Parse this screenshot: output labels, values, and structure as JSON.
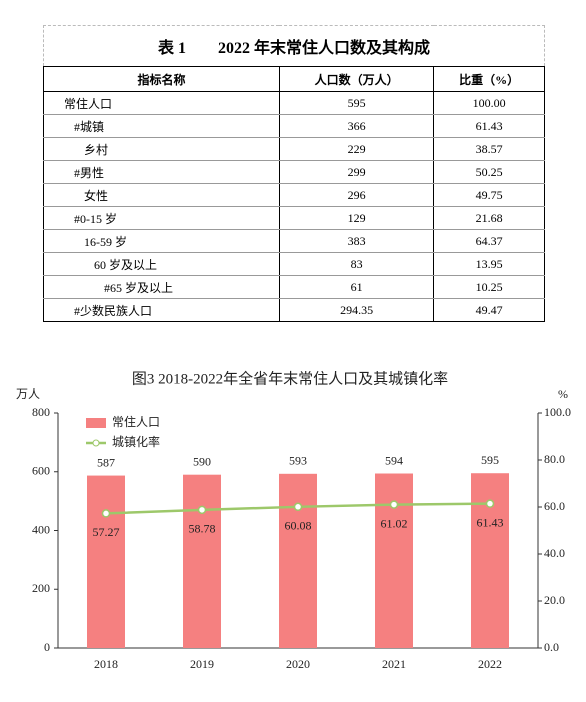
{
  "table": {
    "title": "表 1　　2022 年末常住人口数及其构成",
    "header": [
      "指标名称",
      "人口数（万人）",
      "比重（%）"
    ],
    "rows": [
      [
        "常住人口",
        "595",
        "100.00"
      ],
      [
        "#城镇",
        "366",
        "61.43"
      ],
      [
        "乡村",
        "229",
        "38.57"
      ],
      [
        "#男性",
        "299",
        "50.25"
      ],
      [
        "女性",
        "296",
        "49.75"
      ],
      [
        "#0-15 岁",
        "129",
        "21.68"
      ],
      [
        "16-59 岁",
        "383",
        "64.37"
      ],
      [
        "60 岁及以上",
        "83",
        "13.95"
      ],
      [
        "#65 岁及以上",
        "61",
        "10.25"
      ],
      [
        "#少数民族人口",
        "294.35",
        "49.47"
      ]
    ]
  },
  "chart_data": {
    "type": "bar",
    "title": "图3  2018-2022年全省年末常住人口及其城镇化率",
    "ylabel": "万人",
    "y2label": "%",
    "categories": [
      "2018",
      "2019",
      "2020",
      "2021",
      "2022"
    ],
    "series": [
      {
        "name": "常住人口",
        "type": "bar",
        "color": "#f58080",
        "values": [
          587,
          590,
          593,
          594,
          595
        ]
      },
      {
        "name": "城镇化率",
        "type": "line",
        "axis": "y2",
        "color": "#9dc86a",
        "values": [
          57.27,
          58.78,
          60.08,
          61.02,
          61.43
        ]
      }
    ],
    "ylim": [
      0,
      800
    ],
    "yticks": [
      0,
      200,
      400,
      600,
      800
    ],
    "y2lim": [
      0,
      100
    ],
    "y2ticks": [
      {
        "value": 0,
        "label": "0.0"
      },
      {
        "value": 20,
        "label": "20.0"
      },
      {
        "value": 40,
        "label": "40.0"
      },
      {
        "value": 60,
        "label": "60.0"
      },
      {
        "value": 80,
        "label": "80.0"
      },
      {
        "value": 100,
        "label": "100.0"
      }
    ]
  }
}
